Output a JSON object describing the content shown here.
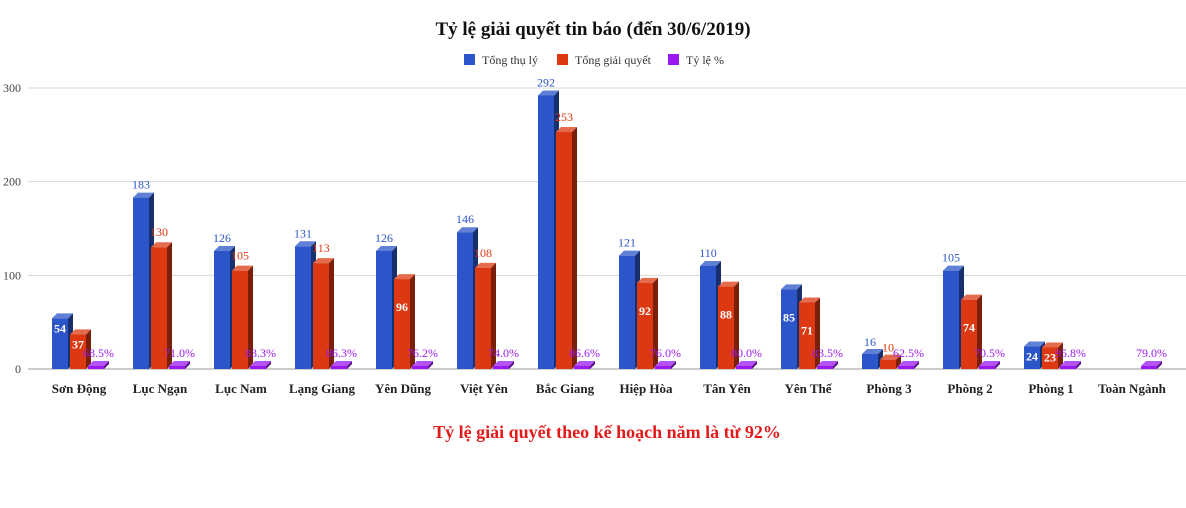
{
  "chart_data": {
    "type": "bar",
    "title": "Tỷ lệ giải quyết tin báo (đến 30/6/2019)",
    "note": "Tỷ lệ giải quyết theo kế hoạch năm là từ 92%",
    "categories": [
      "Sơn Động",
      "Lục Ngạn",
      "Lục Nam",
      "Lạng Giang",
      "Yên Dũng",
      "Việt Yên",
      "Bắc Giang",
      "Hiệp Hòa",
      "Tân Yên",
      "Yên Thế",
      "Phòng 3",
      "Phòng 2",
      "Phòng 1",
      "Toàn Ngành"
    ],
    "series": [
      {
        "name": "Tổng thụ lý",
        "color": "#2b55c8",
        "values": [
          54,
          183,
          126,
          131,
          126,
          146,
          292,
          121,
          110,
          85,
          16,
          105,
          24,
          null
        ],
        "labels": [
          "54",
          "183",
          "126",
          "131",
          "126",
          "146",
          "292",
          "121",
          "110",
          "85",
          "16",
          "105",
          "24",
          ""
        ]
      },
      {
        "name": "Tổng giải quyết",
        "color": "#dc3912",
        "values": [
          37,
          130,
          105,
          113,
          96,
          108,
          253,
          92,
          88,
          71,
          10,
          74,
          23,
          null
        ],
        "labels": [
          "37",
          "130",
          "105",
          "113",
          "96",
          "108",
          "253",
          "92",
          "88",
          "71",
          "10",
          "74",
          "23",
          ""
        ]
      },
      {
        "name": "Tỷ lệ %",
        "color": "#9b19f0",
        "values": [
          68.5,
          71.0,
          83.3,
          86.3,
          76.2,
          74.0,
          86.6,
          76.0,
          80.0,
          83.5,
          62.5,
          70.5,
          95.8,
          79.0
        ],
        "labels": [
          "68.5%",
          "71.0%",
          "83.3%",
          "86.3%",
          "76.2%",
          "74.0%",
          "86.6%",
          "76.0%",
          "80.0%",
          "83.5%",
          "62.5%",
          "70.5%",
          "95.8%",
          "79.0%"
        ]
      }
    ],
    "yticks": [
      "0",
      "100",
      "200",
      "300"
    ],
    "ylim": [
      0,
      300
    ],
    "grid": true,
    "legend": "top-center"
  }
}
